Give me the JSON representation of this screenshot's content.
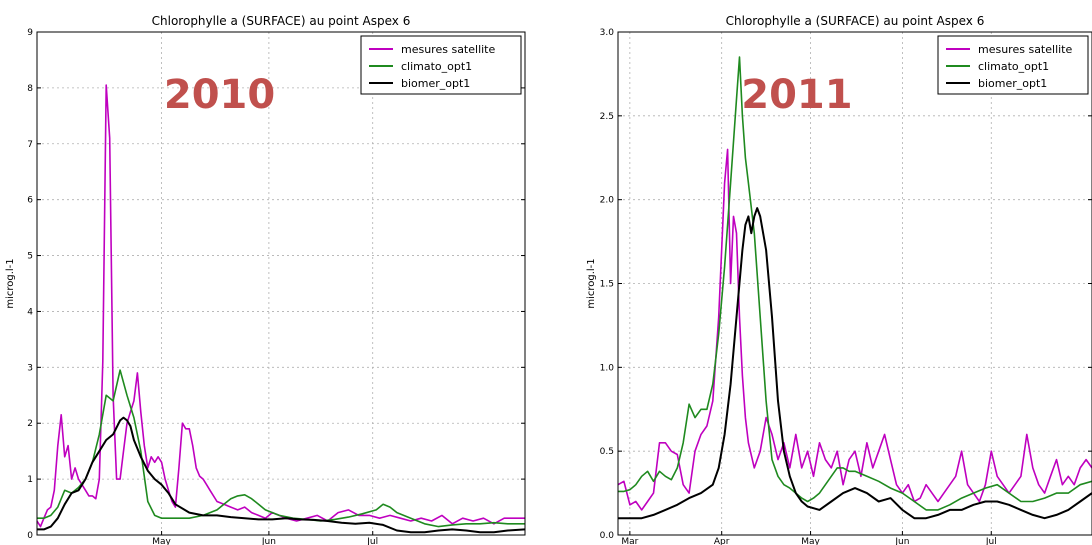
{
  "chart_data": [
    {
      "type": "line",
      "title": "Chlorophylle a (SURFACE) au point Aspex 6",
      "annotation": "2010",
      "ylabel": "microg.l-1",
      "xlabel": "",
      "ylim": [
        0,
        9
      ],
      "xlim": [
        0,
        141
      ],
      "yticks": [
        0,
        1,
        2,
        3,
        4,
        5,
        6,
        7,
        8,
        9
      ],
      "ytick_labels": [
        "0",
        "1",
        "2",
        "3",
        "4",
        "5",
        "6",
        "7",
        "8",
        "9"
      ],
      "xticks": [
        {
          "x": 36,
          "label": "May"
        },
        {
          "x": 67,
          "label": "Jun"
        },
        {
          "x": 97,
          "label": "Jul"
        }
      ],
      "grid": true,
      "legend": "top-right",
      "series": [
        {
          "name": "mesures satellite",
          "color": "#bf00bf",
          "x": [
            0,
            1,
            2,
            3,
            4,
            5,
            6,
            7,
            8,
            9,
            10,
            11,
            12,
            13,
            14,
            15,
            16,
            17,
            18,
            19,
            20,
            21,
            22,
            23,
            24,
            25,
            26,
            27,
            28,
            29,
            30,
            31,
            32,
            33,
            34,
            35,
            36,
            37,
            38,
            39,
            40,
            41,
            42,
            43,
            44,
            45,
            46,
            47,
            48,
            49,
            50,
            52,
            54,
            56,
            58,
            60,
            62,
            64,
            66,
            68,
            70,
            72,
            75,
            78,
            81,
            84,
            87,
            90,
            93,
            96,
            99,
            102,
            105,
            108,
            111,
            114,
            117,
            120,
            123,
            126,
            129,
            132,
            135,
            138,
            141
          ],
          "y": [
            0.25,
            0.15,
            0.3,
            0.45,
            0.5,
            0.8,
            1.6,
            2.15,
            1.4,
            1.6,
            1.0,
            1.2,
            1.0,
            0.9,
            0.8,
            0.7,
            0.7,
            0.65,
            1.0,
            3.1,
            8.05,
            7.1,
            2.5,
            1.0,
            1.0,
            1.5,
            2.0,
            2.2,
            2.4,
            2.9,
            2.2,
            1.6,
            1.2,
            1.4,
            1.3,
            1.4,
            1.3,
            1.0,
            0.8,
            0.6,
            0.5,
            1.2,
            2.0,
            1.9,
            1.9,
            1.6,
            1.2,
            1.05,
            1.0,
            0.9,
            0.8,
            0.6,
            0.55,
            0.5,
            0.45,
            0.5,
            0.4,
            0.35,
            0.3,
            0.4,
            0.35,
            0.3,
            0.25,
            0.3,
            0.35,
            0.25,
            0.4,
            0.45,
            0.35,
            0.35,
            0.3,
            0.35,
            0.3,
            0.25,
            0.3,
            0.25,
            0.35,
            0.2,
            0.3,
            0.25,
            0.3,
            0.2,
            0.3,
            0.3,
            0.3
          ]
        },
        {
          "name": "climato_opt1",
          "color": "#1f8a1f",
          "x": [
            0,
            2,
            4,
            6,
            8,
            10,
            12,
            14,
            16,
            18,
            20,
            22,
            24,
            26,
            28,
            30,
            32,
            34,
            36,
            38,
            40,
            44,
            48,
            52,
            54,
            56,
            58,
            60,
            62,
            64,
            66,
            70,
            74,
            78,
            82,
            86,
            90,
            94,
            98,
            100,
            102,
            104,
            108,
            112,
            116,
            120,
            124,
            128,
            132,
            136,
            141
          ],
          "y": [
            0.3,
            0.3,
            0.35,
            0.5,
            0.8,
            0.75,
            0.85,
            1.0,
            1.3,
            1.8,
            2.5,
            2.4,
            2.95,
            2.5,
            2.1,
            1.5,
            0.6,
            0.35,
            0.3,
            0.3,
            0.3,
            0.3,
            0.35,
            0.45,
            0.55,
            0.65,
            0.7,
            0.72,
            0.65,
            0.55,
            0.45,
            0.35,
            0.3,
            0.28,
            0.25,
            0.28,
            0.32,
            0.38,
            0.45,
            0.55,
            0.5,
            0.4,
            0.3,
            0.2,
            0.15,
            0.18,
            0.2,
            0.2,
            0.22,
            0.2,
            0.2
          ]
        },
        {
          "name": "biomer_opt1",
          "color": "#000000",
          "x": [
            0,
            2,
            4,
            6,
            8,
            10,
            12,
            14,
            16,
            18,
            20,
            22,
            24,
            25,
            26,
            27,
            28,
            30,
            32,
            34,
            36,
            38,
            40,
            44,
            48,
            52,
            56,
            60,
            64,
            68,
            72,
            76,
            80,
            84,
            88,
            92,
            96,
            100,
            104,
            108,
            112,
            116,
            120,
            124,
            128,
            132,
            136,
            141
          ],
          "y": [
            0.1,
            0.1,
            0.15,
            0.3,
            0.55,
            0.75,
            0.8,
            1.0,
            1.3,
            1.5,
            1.7,
            1.8,
            2.05,
            2.1,
            2.05,
            1.95,
            1.7,
            1.4,
            1.15,
            1.0,
            0.9,
            0.75,
            0.55,
            0.4,
            0.35,
            0.35,
            0.32,
            0.3,
            0.28,
            0.28,
            0.3,
            0.28,
            0.27,
            0.25,
            0.22,
            0.2,
            0.22,
            0.18,
            0.08,
            0.05,
            0.05,
            0.08,
            0.1,
            0.08,
            0.05,
            0.05,
            0.08,
            0.1
          ]
        }
      ]
    },
    {
      "type": "line",
      "title": "Chlorophylle a (SURFACE) au point Aspex 6",
      "annotation": "2011",
      "ylabel": "microg.l-1",
      "xlabel": "",
      "ylim": [
        0,
        3.0
      ],
      "xlim": [
        0,
        160
      ],
      "yticks": [
        0,
        0.5,
        1.0,
        1.5,
        2.0,
        2.5,
        3.0
      ],
      "ytick_labels": [
        "0.0",
        "0.5",
        "1.0",
        "1.5",
        "2.0",
        "2.5",
        "3.0"
      ],
      "xticks": [
        {
          "x": 4,
          "label": "Mar"
        },
        {
          "x": 35,
          "label": "Apr"
        },
        {
          "x": 65,
          "label": "May"
        },
        {
          "x": 96,
          "label": "Jun"
        },
        {
          "x": 126,
          "label": "Jul"
        }
      ],
      "grid": true,
      "legend": "top-right",
      "series": [
        {
          "name": "mesures satellite",
          "color": "#bf00bf",
          "x": [
            0,
            2,
            4,
            6,
            8,
            10,
            12,
            14,
            16,
            18,
            20,
            22,
            24,
            26,
            28,
            30,
            32,
            34,
            36,
            37,
            38,
            39,
            40,
            41,
            42,
            43,
            44,
            46,
            48,
            50,
            52,
            54,
            56,
            58,
            60,
            62,
            64,
            66,
            68,
            70,
            72,
            74,
            76,
            78,
            80,
            82,
            84,
            86,
            88,
            90,
            92,
            94,
            96,
            98,
            100,
            102,
            104,
            106,
            108,
            110,
            112,
            114,
            116,
            118,
            120,
            122,
            124,
            126,
            128,
            130,
            132,
            134,
            136,
            138,
            140,
            142,
            144,
            146,
            148,
            150,
            152,
            154,
            156,
            158,
            160
          ],
          "y": [
            0.3,
            0.32,
            0.18,
            0.2,
            0.15,
            0.2,
            0.25,
            0.55,
            0.55,
            0.5,
            0.48,
            0.3,
            0.25,
            0.5,
            0.6,
            0.65,
            0.8,
            1.3,
            2.1,
            2.3,
            1.5,
            1.9,
            1.8,
            1.3,
            0.95,
            0.7,
            0.55,
            0.4,
            0.5,
            0.7,
            0.6,
            0.45,
            0.55,
            0.4,
            0.6,
            0.4,
            0.5,
            0.35,
            0.55,
            0.45,
            0.4,
            0.5,
            0.3,
            0.45,
            0.5,
            0.35,
            0.55,
            0.4,
            0.5,
            0.6,
            0.45,
            0.3,
            0.25,
            0.3,
            0.2,
            0.22,
            0.3,
            0.25,
            0.2,
            0.25,
            0.3,
            0.35,
            0.5,
            0.3,
            0.25,
            0.2,
            0.3,
            0.5,
            0.35,
            0.3,
            0.25,
            0.3,
            0.35,
            0.6,
            0.4,
            0.3,
            0.25,
            0.35,
            0.45,
            0.3,
            0.35,
            0.3,
            0.4,
            0.45,
            0.4
          ]
        },
        {
          "name": "climato_opt1",
          "color": "#1f8a1f",
          "x": [
            0,
            2,
            4,
            6,
            8,
            10,
            12,
            14,
            16,
            18,
            20,
            22,
            24,
            26,
            28,
            30,
            32,
            34,
            36,
            38,
            40,
            41,
            42,
            43,
            44,
            46,
            48,
            50,
            52,
            54,
            56,
            58,
            60,
            62,
            64,
            66,
            68,
            70,
            72,
            74,
            76,
            78,
            80,
            84,
            88,
            92,
            96,
            100,
            104,
            108,
            112,
            116,
            120,
            124,
            128,
            132,
            136,
            140,
            144,
            148,
            152,
            156,
            160
          ],
          "y": [
            0.26,
            0.26,
            0.27,
            0.3,
            0.35,
            0.38,
            0.32,
            0.38,
            0.35,
            0.33,
            0.4,
            0.55,
            0.78,
            0.7,
            0.75,
            0.75,
            0.9,
            1.2,
            1.6,
            2.1,
            2.6,
            2.85,
            2.5,
            2.25,
            2.1,
            1.8,
            1.3,
            0.8,
            0.45,
            0.35,
            0.3,
            0.28,
            0.25,
            0.22,
            0.2,
            0.22,
            0.25,
            0.3,
            0.35,
            0.4,
            0.4,
            0.38,
            0.38,
            0.35,
            0.32,
            0.28,
            0.25,
            0.2,
            0.15,
            0.15,
            0.18,
            0.22,
            0.25,
            0.28,
            0.3,
            0.25,
            0.2,
            0.2,
            0.22,
            0.25,
            0.25,
            0.3,
            0.32
          ]
        },
        {
          "name": "biomer_opt1",
          "color": "#000000",
          "x": [
            0,
            4,
            8,
            12,
            16,
            20,
            24,
            28,
            32,
            34,
            36,
            38,
            40,
            42,
            43,
            44,
            45,
            46,
            47,
            48,
            50,
            52,
            54,
            56,
            58,
            60,
            62,
            64,
            68,
            72,
            76,
            80,
            84,
            88,
            92,
            96,
            100,
            104,
            108,
            112,
            116,
            120,
            124,
            128,
            132,
            136,
            140,
            144,
            148,
            152,
            156,
            160
          ],
          "y": [
            0.1,
            0.1,
            0.1,
            0.12,
            0.15,
            0.18,
            0.22,
            0.25,
            0.3,
            0.4,
            0.6,
            0.9,
            1.3,
            1.7,
            1.85,
            1.9,
            1.8,
            1.9,
            1.95,
            1.9,
            1.7,
            1.3,
            0.8,
            0.5,
            0.35,
            0.25,
            0.2,
            0.17,
            0.15,
            0.2,
            0.25,
            0.28,
            0.25,
            0.2,
            0.22,
            0.15,
            0.1,
            0.1,
            0.12,
            0.15,
            0.15,
            0.18,
            0.2,
            0.2,
            0.18,
            0.15,
            0.12,
            0.1,
            0.12,
            0.15,
            0.2,
            0.25
          ]
        }
      ]
    }
  ]
}
